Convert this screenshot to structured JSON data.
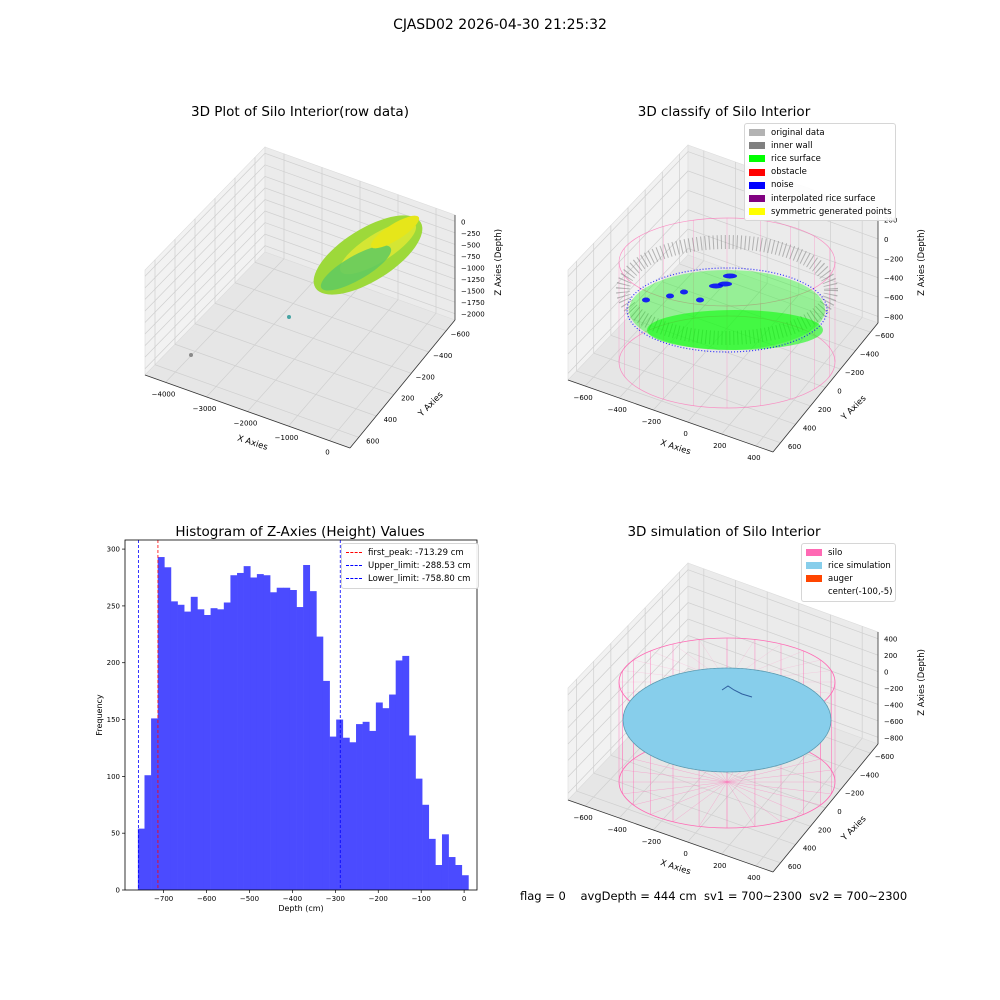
{
  "suptitle": "CJASD02 2026-04-30 21:25:32",
  "panel_titles": {
    "raw": "3D Plot of Silo Interior(row data)",
    "classify": "3D classify of Silo Interior",
    "histogram": "Histogram of Z-Axies (Height) Values",
    "simulation": "3D simulation of Silo Interior"
  },
  "axis_labels": {
    "x": "X Axies",
    "y": "Y Axies",
    "z": "Z Axies (Depth)"
  },
  "raw_ticks": {
    "x": [
      "−4000",
      "−3000",
      "−2000",
      "−1000",
      "0"
    ],
    "y": [
      "600",
      "400",
      "200",
      "−200",
      "−400",
      "−600"
    ],
    "z": [
      "0",
      "−250",
      "−500",
      "−750",
      "−1000",
      "−1250",
      "−1500",
      "−1750",
      "−2000"
    ]
  },
  "sim_ticks": {
    "x": [
      "−600",
      "−400",
      "−200",
      "0",
      "200",
      "400"
    ],
    "y": [
      "600",
      "400",
      "200",
      "0",
      "−200",
      "−400",
      "−600"
    ],
    "z": [
      "400",
      "200",
      "0",
      "−200",
      "−400",
      "−600",
      "−800"
    ]
  },
  "classify_ticks": {
    "x": [
      "−600",
      "−400",
      "−200",
      "0",
      "200",
      "400"
    ],
    "y": [
      "600",
      "400",
      "200",
      "0",
      "−200",
      "−400",
      "−600"
    ],
    "z": [
      "200",
      "0",
      "−200",
      "−400",
      "−600",
      "−800"
    ]
  },
  "classify_legend": [
    {
      "label": "original data",
      "color": "#b3b3b3"
    },
    {
      "label": "inner wall",
      "color": "#808080"
    },
    {
      "label": "rice surface",
      "color": "#00ff00"
    },
    {
      "label": "obstacle",
      "color": "#ff0000"
    },
    {
      "label": "noise",
      "color": "#0000ff"
    },
    {
      "label": "interpolated rice surface",
      "color": "#800080"
    },
    {
      "label": "symmetric generated points",
      "color": "#ffff00"
    }
  ],
  "simulation_legend": [
    {
      "label": "silo",
      "color": "#ff69b4"
    },
    {
      "label": "rice simulation",
      "color": "#87ceeb"
    },
    {
      "label": "auger",
      "color": "#ff4500"
    },
    {
      "label": "center(-100,-5)",
      "color": ""
    }
  ],
  "status_line": "flag = 0    avgDepth = 444 cm  sv1 = 700~2300  sv2 = 700~2300",
  "colors": {
    "histogram_bar": "#4b4bff",
    "first_peak_line": "#ff0000",
    "limit_lines": "#0000ff",
    "silo": "#ff69b4",
    "rice_simulation": "#87ceeb",
    "rice_surface": "#00ff00",
    "noise": "#0000ff",
    "inner_wall": "#808080"
  },
  "chart_data": [
    {
      "type": "scatter",
      "title": "3D Plot of Silo Interior(row data)",
      "xlabel": "X Axies",
      "ylabel": "Y Axies",
      "zlabel": "Z Axies (Depth)",
      "xlim": [
        -4300,
        300
      ],
      "ylim": [
        -700,
        700
      ],
      "zlim": [
        -2100,
        100
      ],
      "colormap": "viridis"
    },
    {
      "type": "scatter",
      "title": "3D classify of Silo Interior",
      "xlabel": "X Axies",
      "ylabel": "Y Axies",
      "zlabel": "Z Axies (Depth)",
      "legend_position": "top-right"
    },
    {
      "type": "bar",
      "title": "Histogram of Z-Axies (Height) Values",
      "xlabel": "Depth (cm)",
      "ylabel": "Frequency",
      "xlim": [
        -790,
        30
      ],
      "ylim": [
        0,
        308
      ],
      "xticks": [
        -700,
        -600,
        -500,
        -400,
        -300,
        -200,
        -100,
        0
      ],
      "xtick_labels": [
        "−700",
        "−600",
        "−500",
        "−400",
        "−300",
        "−200",
        "−100",
        "0"
      ],
      "yticks": [
        0,
        50,
        100,
        150,
        200,
        250,
        300
      ],
      "bin_start": -760,
      "bin_width": 15.4,
      "values": [
        54,
        101,
        151,
        293,
        284,
        254,
        251,
        245,
        258,
        247,
        242,
        248,
        247,
        253,
        277,
        279,
        285,
        275,
        278,
        277,
        262,
        266,
        266,
        264,
        249,
        286,
        263,
        223,
        184,
        135,
        150,
        134,
        130,
        146,
        148,
        140,
        165,
        160,
        172,
        202,
        206,
        136,
        98,
        75,
        45,
        22,
        49,
        29,
        22,
        13
      ],
      "vlines": [
        {
          "label": "first_peak: -713.29 cm",
          "x": -713.29,
          "color": "#ff0000"
        },
        {
          "label": "Upper_limit: -288.53 cm",
          "x": -288.53,
          "color": "#0000ff"
        },
        {
          "label": "Lower_limit: -758.80 cm",
          "x": -758.8,
          "color": "#0000ff"
        }
      ],
      "legend_position": "top-right"
    },
    {
      "type": "scatter",
      "title": "3D simulation of Silo Interior",
      "xlabel": "X Axies",
      "ylabel": "Y Axies",
      "zlabel": "Z Axies (Depth)",
      "center": [
        -100,
        -5
      ],
      "legend_position": "top-right"
    }
  ]
}
